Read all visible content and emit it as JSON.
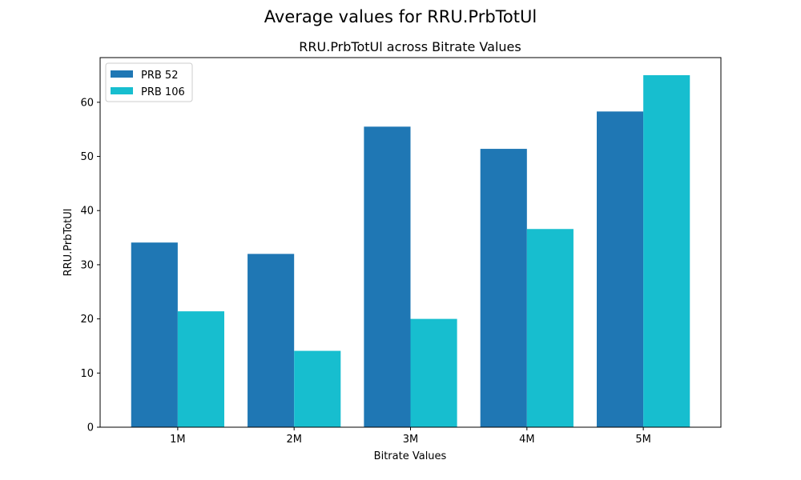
{
  "suptitle": "Average values for RRU.PrbTotUl",
  "chart_data": {
    "type": "bar",
    "title": "RRU.PrbTotUl across Bitrate Values",
    "xlabel": "Bitrate Values",
    "ylabel": "RRU.PrbTotUl",
    "categories": [
      "1M",
      "2M",
      "3M",
      "4M",
      "5M"
    ],
    "series": [
      {
        "name": "PRB 52",
        "color": "#1f77b4",
        "values": [
          34.1,
          32.0,
          55.5,
          51.4,
          58.3
        ]
      },
      {
        "name": "PRB 106",
        "color": "#17becf",
        "values": [
          21.4,
          14.1,
          20.0,
          36.6,
          65.0
        ]
      }
    ],
    "ylim": [
      0,
      68.25
    ],
    "yticks": [
      0,
      10,
      20,
      30,
      40,
      50,
      60
    ],
    "grid": false,
    "legend": "upper-left"
  }
}
